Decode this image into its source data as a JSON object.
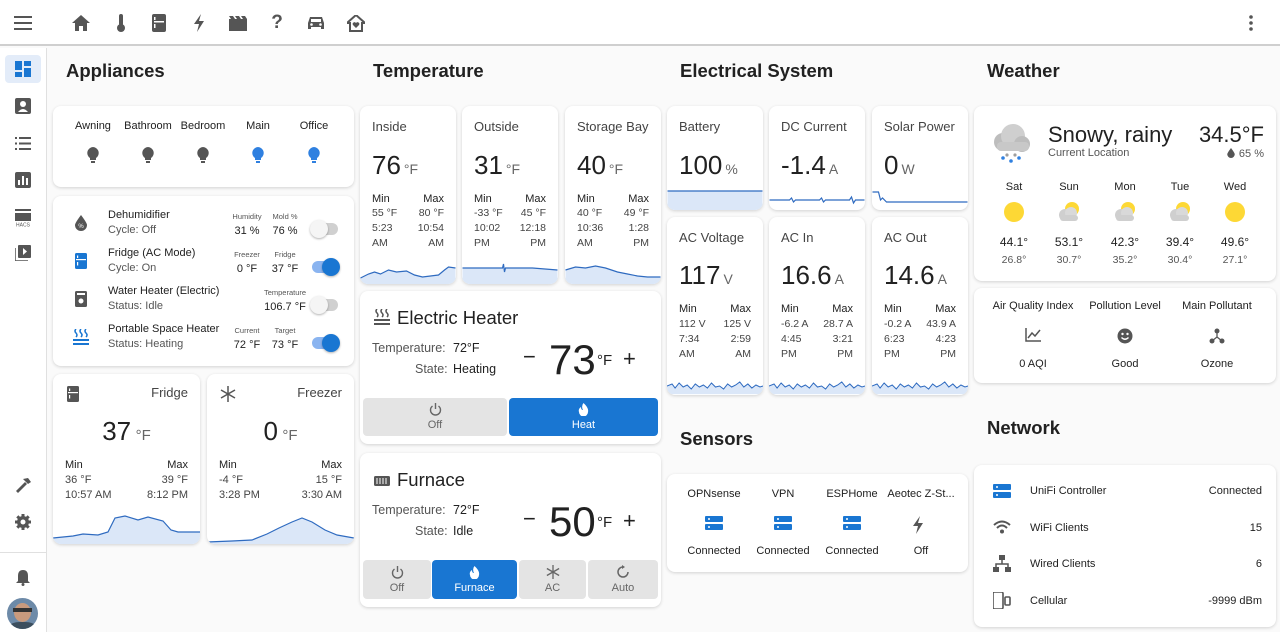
{
  "nav": {
    "icons": [
      "home-icon",
      "thermometer-icon",
      "fridge-icon",
      "flash-icon",
      "movie-icon",
      "help-icon",
      "car-icon",
      "home-heart-icon"
    ]
  },
  "sections": {
    "appliances": "Appliances",
    "temperature": "Temperature",
    "electrical": "Electrical System",
    "weather": "Weather",
    "sensors": "Sensors",
    "network": "Network"
  },
  "lights": [
    {
      "label": "Awning",
      "on": false
    },
    {
      "label": "Bathroom",
      "on": false
    },
    {
      "label": "Bedroom",
      "on": false
    },
    {
      "label": "Main",
      "on": true
    },
    {
      "label": "Office",
      "on": true
    }
  ],
  "devices": [
    {
      "name": "Dehumidifier",
      "status": "Cycle: Off",
      "k1": "Humidity",
      "v1": "31 %",
      "k2": "Mold %",
      "v2": "76 %",
      "on": false
    },
    {
      "name": "Fridge (AC Mode)",
      "status": "Cycle: On",
      "k1": "Freezer",
      "v1": "0 °F",
      "k2": "Fridge",
      "v2": "37 °F",
      "on": true
    },
    {
      "name": "Water Heater (Electric)",
      "status": "Status: Idle",
      "k1": "",
      "v1": "",
      "k2": "Temperature",
      "v2": "106.7 °F",
      "on": false
    },
    {
      "name": "Portable Space Heater",
      "status": "Status: Heating",
      "k1": "Current",
      "v1": "72 °F",
      "k2": "Target",
      "v2": "73 °F",
      "on": true
    }
  ],
  "fridge": {
    "name": "Fridge",
    "value": "37",
    "unit": "°F",
    "min_label": "Min",
    "max_label": "Max",
    "min": "36 °F",
    "min_time": "10:57 AM",
    "max": "39 °F",
    "max_time": "8:12 PM"
  },
  "freezer": {
    "name": "Freezer",
    "value": "0",
    "unit": "°F",
    "min_label": "Min",
    "max_label": "Max",
    "min": "-4 °F",
    "min_time": "3:28 PM",
    "max": "15 °F",
    "max_time": "3:30 AM"
  },
  "temps": [
    {
      "name": "Inside",
      "value": "76",
      "unit": "°F",
      "min": "55 °F",
      "min_t1": "5:23",
      "min_t2": "AM",
      "max": "80 °F",
      "max_t1": "10:54",
      "max_t2": "AM"
    },
    {
      "name": "Outside",
      "value": "31",
      "unit": "°F",
      "min": "-33 °F",
      "min_t1": "10:02",
      "min_t2": "PM",
      "max": "45 °F",
      "max_t1": "12:18",
      "max_t2": "PM"
    },
    {
      "name": "Storage Bay",
      "value": "40",
      "unit": "°F",
      "min": "40 °F",
      "min_t1": "10:36",
      "min_t2": "AM",
      "max": "49 °F",
      "max_t1": "1:28",
      "max_t2": "PM"
    }
  ],
  "labels": {
    "min": "Min",
    "max": "Max",
    "temperature": "Temperature:",
    "state": "State:"
  },
  "heater": {
    "name": "Electric Heater",
    "temp": "72°F",
    "state": "Heating",
    "target": "73",
    "unit": "°F",
    "minus": "−",
    "plus": "+",
    "modes": [
      {
        "label": "Off",
        "on": false
      },
      {
        "label": "Heat",
        "on": true
      }
    ]
  },
  "furnace": {
    "name": "Furnace",
    "temp": "72°F",
    "state": "Idle",
    "target": "50",
    "unit": "°F",
    "minus": "−",
    "plus": "+",
    "modes": [
      {
        "label": "Off",
        "on": false
      },
      {
        "label": "Furnace",
        "on": true
      },
      {
        "label": "AC",
        "on": false
      },
      {
        "label": "Auto",
        "on": false
      }
    ]
  },
  "elec_top": [
    {
      "name": "Battery",
      "value": "100",
      "unit": "%"
    },
    {
      "name": "DC Current",
      "value": "-1.4",
      "unit": "A"
    },
    {
      "name": "Solar Power",
      "value": "0",
      "unit": "W"
    }
  ],
  "elec_bottom": [
    {
      "name": "AC Voltage",
      "value": "117",
      "unit": "V",
      "min": "112 V",
      "min_t1": "7:34",
      "min_t2": "AM",
      "max": "125 V",
      "max_t1": "2:59",
      "max_t2": "AM"
    },
    {
      "name": "AC In",
      "value": "16.6",
      "unit": "A",
      "min": "-6.2 A",
      "min_t1": "4:45",
      "min_t2": "PM",
      "max": "28.7 A",
      "max_t1": "3:21",
      "max_t2": "PM"
    },
    {
      "name": "AC Out",
      "value": "14.6",
      "unit": "A",
      "min": "-0.2 A",
      "min_t1": "6:23",
      "min_t2": "PM",
      "max": "43.9 A",
      "max_t1": "4:23",
      "max_t2": "PM"
    }
  ],
  "sensors": [
    {
      "name": "OPNsense",
      "state": "Connected"
    },
    {
      "name": "VPN",
      "state": "Connected"
    },
    {
      "name": "ESPHome",
      "state": "Connected"
    },
    {
      "name": "Aeotec Z-St...",
      "state": "Off"
    }
  ],
  "weather": {
    "condition": "Snowy, rainy",
    "location": "Current Location",
    "temp": "34.5°F",
    "humidity": "65 %",
    "forecast": [
      {
        "day": "Sat",
        "hi": "44.1°",
        "lo": "26.8°",
        "icon": "sunny"
      },
      {
        "day": "Sun",
        "hi": "53.1°",
        "lo": "30.7°",
        "icon": "partly-cloudy"
      },
      {
        "day": "Mon",
        "hi": "42.3°",
        "lo": "35.2°",
        "icon": "partly-cloudy"
      },
      {
        "day": "Tue",
        "hi": "39.4°",
        "lo": "30.4°",
        "icon": "partly-cloudy"
      },
      {
        "day": "Wed",
        "hi": "49.6°",
        "lo": "27.1°",
        "icon": "sunny"
      }
    ]
  },
  "air": [
    {
      "title": "Air Quality Index",
      "value": "0 AQI"
    },
    {
      "title": "Pollution Level",
      "value": "Good"
    },
    {
      "title": "Main Pollutant",
      "value": "Ozone"
    }
  ],
  "network": [
    {
      "name": "UniFi Controller",
      "value": "Connected"
    },
    {
      "name": "WiFi Clients",
      "value": "15"
    },
    {
      "name": "Wired Clients",
      "value": "6"
    },
    {
      "name": "Cellular",
      "value": "-9999 dBm"
    }
  ],
  "colors": {
    "accent": "#1976d2",
    "light_on": "#2f80e0",
    "sparkline": "#2f6bc0",
    "sparkfill": "#dbe7f8",
    "sun": "#fdd835"
  }
}
